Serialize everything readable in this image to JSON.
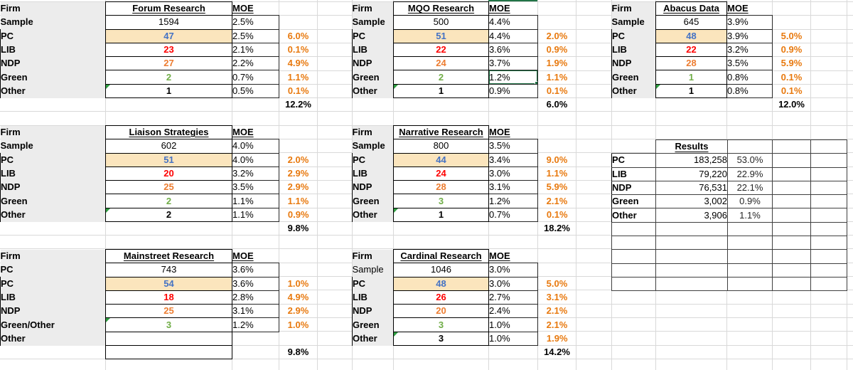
{
  "palette": {
    "pc_blue": "#4472c4",
    "lib_red": "#fe0000",
    "ndp_orange": "#ed7d31",
    "green": "#70ad47",
    "black": "#000000",
    "diff_orange": "#e8790e",
    "highlight_tan": "#fbe5bd",
    "label_gray": "#ececec",
    "selection_green": "#217346",
    "gridline_gray": "#d9d9d9"
  },
  "firm_blocks": [
    {
      "firm_label": "Firm",
      "name": "Forum Research",
      "moe_label": "MOE",
      "rows": [
        {
          "label": "Sample",
          "value": "1594",
          "moe": "2.5%",
          "diff": null
        },
        {
          "label": "PC",
          "value": "47",
          "color": "pc_blue",
          "highlight": true,
          "moe": "2.5%",
          "diff": "6.0%"
        },
        {
          "label": "LIB",
          "value": "23",
          "color": "lib_red",
          "moe": "2.1%",
          "diff": "0.1%"
        },
        {
          "label": "NDP",
          "value": "27",
          "color": "ndp_orange",
          "moe": "2.2%",
          "diff": "4.9%"
        },
        {
          "label": "Green",
          "value": "2",
          "color": "green",
          "moe": "0.7%",
          "diff": "1.1%"
        },
        {
          "label": "Other",
          "value": "1",
          "color": "black",
          "note": true,
          "moe": "0.5%",
          "diff": "0.1%"
        }
      ],
      "total": "12.2%"
    },
    {
      "firm_label": "Firm",
      "name": "MQO Research",
      "moe_label": "MOE",
      "rows": [
        {
          "label": "Sample",
          "value": "500",
          "moe": "4.4%",
          "diff": null
        },
        {
          "label": "PC",
          "value": "51",
          "color": "pc_blue",
          "highlight": true,
          "moe": "4.4%",
          "diff": "2.0%"
        },
        {
          "label": "LIB",
          "value": "22",
          "color": "lib_red",
          "moe": "3.6%",
          "diff": "0.9%"
        },
        {
          "label": "NDP",
          "value": "24",
          "color": "ndp_orange",
          "moe": "3.7%",
          "diff": "1.9%"
        },
        {
          "label": "Green",
          "value": "2",
          "color": "green",
          "moe": "1.2%",
          "diff": "1.1%",
          "moe_selected": true
        },
        {
          "label": "Other",
          "value": "1",
          "color": "black",
          "note": true,
          "moe": "0.9%",
          "diff": "0.1%"
        }
      ],
      "total": "6.0%"
    },
    {
      "firm_label": "Firm",
      "name": "Abacus Data",
      "moe_label": "MOE",
      "rows": [
        {
          "label": "Sample",
          "value": "645",
          "moe": "3.9%",
          "diff": null
        },
        {
          "label": "PC",
          "value": "48",
          "color": "pc_blue",
          "highlight": true,
          "moe": "3.9%",
          "diff": "5.0%"
        },
        {
          "label": "LIB",
          "value": "22",
          "color": "lib_red",
          "moe": "3.2%",
          "diff": "0.9%"
        },
        {
          "label": "NDP",
          "value": "28",
          "color": "ndp_orange",
          "moe": "3.5%",
          "diff": "5.9%"
        },
        {
          "label": "Green",
          "value": "1",
          "color": "green",
          "moe": "0.8%",
          "diff": "0.1%"
        },
        {
          "label": "Other",
          "value": "1",
          "color": "black",
          "note": true,
          "moe": "0.8%",
          "diff": "0.1%"
        }
      ],
      "total": "12.0%"
    },
    {
      "firm_label": "Firm",
      "name": "Liaison Strategies",
      "moe_label": "MOE",
      "rows": [
        {
          "label": "Sample",
          "value": "602",
          "moe": "4.0%",
          "diff": null
        },
        {
          "label": "PC",
          "value": "51",
          "color": "pc_blue",
          "highlight": true,
          "moe": "4.0%",
          "diff": "2.0%"
        },
        {
          "label": "LIB",
          "value": "20",
          "color": "lib_red",
          "moe": "3.2%",
          "diff": "2.9%"
        },
        {
          "label": "NDP",
          "value": "25",
          "color": "ndp_orange",
          "moe": "3.5%",
          "diff": "2.9%"
        },
        {
          "label": "Green",
          "value": "2",
          "color": "green",
          "moe": "1.1%",
          "diff": "1.1%"
        },
        {
          "label": "Other",
          "value": "2",
          "color": "black",
          "note": true,
          "moe": "1.1%",
          "diff": "0.9%"
        }
      ],
      "total": "9.8%"
    },
    {
      "firm_label": "Firm",
      "name": "Narrative Research",
      "moe_label": "MOE",
      "rows": [
        {
          "label": "Sample",
          "value": "800",
          "moe": "3.5%",
          "diff": null
        },
        {
          "label": "PC",
          "value": "44",
          "color": "pc_blue",
          "highlight": true,
          "moe": "3.4%",
          "diff": "9.0%"
        },
        {
          "label": "LIB",
          "value": "24",
          "color": "lib_red",
          "moe": "3.0%",
          "diff": "1.1%"
        },
        {
          "label": "NDP",
          "value": "28",
          "color": "ndp_orange",
          "moe": "3.1%",
          "diff": "5.9%"
        },
        {
          "label": "Green",
          "value": "3",
          "color": "green",
          "moe": "1.2%",
          "diff": "2.1%"
        },
        {
          "label": "Other",
          "value": "1",
          "color": "black",
          "note": true,
          "moe": "0.7%",
          "diff": "0.1%"
        }
      ],
      "total": "18.2%"
    },
    {
      "firm_label": "Firm",
      "name": "Mainstreet Research",
      "moe_label": "MOE",
      "rows": [
        {
          "label": "PC",
          "value": "743",
          "moe": "3.6%",
          "diff": null
        },
        {
          "label": "PC",
          "value": "54",
          "color": "pc_blue",
          "highlight": true,
          "moe": "3.6%",
          "diff": "1.0%"
        },
        {
          "label": "LIB",
          "value": "18",
          "color": "lib_red",
          "moe": "2.8%",
          "diff": "4.9%"
        },
        {
          "label": "NDP",
          "value": "25",
          "color": "ndp_orange",
          "moe": "3.1%",
          "diff": "2.9%"
        },
        {
          "label": "Green/Other",
          "value": "3",
          "color": "green",
          "note": true,
          "moe": "1.2%",
          "diff": "1.0%"
        },
        {
          "label": "Other",
          "value": "",
          "moe": null,
          "diff": null
        }
      ],
      "total": "9.8%",
      "total_value_bordered": true
    },
    {
      "firm_label": "Firm",
      "name": "Cardinal Research",
      "moe_label": "MOE",
      "rows": [
        {
          "label": "Sample",
          "label_bold": false,
          "value": "1046",
          "moe": "3.0%",
          "diff": null
        },
        {
          "label": "PC",
          "value": "48",
          "color": "pc_blue",
          "highlight": true,
          "moe": "3.0%",
          "diff": "5.0%"
        },
        {
          "label": "LIB",
          "value": "26",
          "color": "lib_red",
          "moe": "2.7%",
          "diff": "3.1%"
        },
        {
          "label": "NDP",
          "value": "20",
          "color": "ndp_orange",
          "moe": "2.4%",
          "diff": "2.1%"
        },
        {
          "label": "Green",
          "value": "3",
          "color": "green",
          "moe": "1.0%",
          "diff": "2.1%"
        },
        {
          "label": "Other",
          "value": "3",
          "color": "black",
          "note": true,
          "moe": "1.0%",
          "diff": "1.9%"
        }
      ],
      "total": "14.2%"
    }
  ],
  "results": {
    "title": "Results",
    "rows": [
      {
        "label": "PC",
        "value": "183,258",
        "pct": "53.0%"
      },
      {
        "label": "LIB",
        "value": "79,220",
        "pct": "22.9%"
      },
      {
        "label": "NDP",
        "value": "76,531",
        "pct": "22.1%"
      },
      {
        "label": "Green",
        "value": "3,002",
        "pct": "0.9%"
      },
      {
        "label": "Other",
        "value": "3,906",
        "pct": "1.1%"
      }
    ]
  }
}
